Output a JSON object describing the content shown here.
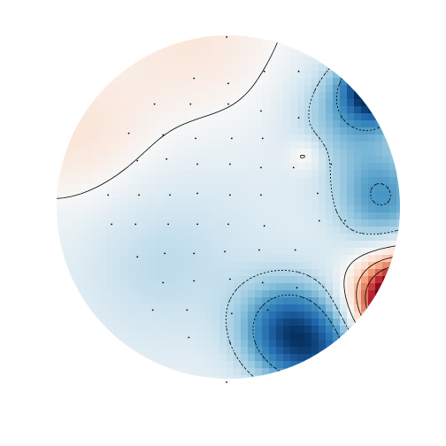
{
  "chart_data": {
    "type": "heatmap",
    "subtype": "eeg-topomap",
    "colormap": "RdBu_r",
    "contours": [
      {
        "level": 0.0,
        "style": "solid"
      },
      {
        "level": -1.0,
        "style": "dashed"
      },
      {
        "level": -2.0,
        "style": "dashed"
      },
      {
        "level": 1.0,
        "style": "solid"
      },
      {
        "level": 2.0,
        "style": "solid"
      }
    ],
    "sensors": [
      {
        "x": -0.01,
        "y": 0.99
      },
      {
        "x": 0.21,
        "y": 0.79
      },
      {
        "x": -0.2,
        "y": 0.75
      },
      {
        "x": 0.0,
        "y": 0.72
      },
      {
        "x": 0.41,
        "y": 0.79
      },
      {
        "x": -0.43,
        "y": 0.6
      },
      {
        "x": -0.22,
        "y": 0.6
      },
      {
        "x": 0.0,
        "y": 0.6
      },
      {
        "x": 0.19,
        "y": 0.56
      },
      {
        "x": 0.41,
        "y": 0.52
      },
      {
        "x": -0.58,
        "y": 0.43
      },
      {
        "x": -0.38,
        "y": 0.42
      },
      {
        "x": -0.19,
        "y": 0.4
      },
      {
        "x": 0.02,
        "y": 0.4
      },
      {
        "x": 0.2,
        "y": 0.4
      },
      {
        "x": -0.53,
        "y": 0.27
      },
      {
        "x": -0.36,
        "y": 0.28
      },
      {
        "x": -0.18,
        "y": 0.25
      },
      {
        "x": 0.01,
        "y": 0.25
      },
      {
        "x": 0.19,
        "y": 0.23
      },
      {
        "x": 0.38,
        "y": 0.23
      },
      {
        "x": 0.6,
        "y": 0.25
      },
      {
        "x": -0.7,
        "y": 0.07
      },
      {
        "x": -0.52,
        "y": 0.07
      },
      {
        "x": -0.34,
        "y": 0.07
      },
      {
        "x": -0.18,
        "y": 0.08
      },
      {
        "x": 0.01,
        "y": 0.07
      },
      {
        "x": 0.19,
        "y": 0.07
      },
      {
        "x": 0.52,
        "y": 0.08
      },
      {
        "x": -0.68,
        "y": -0.1
      },
      {
        "x": -0.54,
        "y": -0.1
      },
      {
        "x": -0.35,
        "y": -0.1
      },
      {
        "x": -0.18,
        "y": -0.1
      },
      {
        "x": 0.0,
        "y": -0.1
      },
      {
        "x": 0.21,
        "y": -0.11
      },
      {
        "x": 0.53,
        "y": -0.08
      },
      {
        "x": 0.68,
        "y": -0.08
      },
      {
        "x": -0.53,
        "y": -0.29
      },
      {
        "x": -0.37,
        "y": -0.27
      },
      {
        "x": -0.2,
        "y": -0.27
      },
      {
        "x": -0.02,
        "y": -0.26
      },
      {
        "x": 0.18,
        "y": -0.25
      },
      {
        "x": 0.39,
        "y": -0.25
      },
      {
        "x": -0.38,
        "y": -0.44
      },
      {
        "x": -0.2,
        "y": -0.43
      },
      {
        "x": 0.01,
        "y": -0.42
      },
      {
        "x": 0.2,
        "y": -0.44
      },
      {
        "x": 0.4,
        "y": -0.47
      },
      {
        "x": -0.44,
        "y": -0.6
      },
      {
        "x": -0.24,
        "y": -0.6
      },
      {
        "x": 0.02,
        "y": -0.62
      },
      {
        "x": 0.23,
        "y": -0.6
      },
      {
        "x": -0.23,
        "y": -0.76
      },
      {
        "x": 0.01,
        "y": -0.79
      },
      {
        "x": -0.01,
        "y": -1.02
      }
    ],
    "field_sources": [
      {
        "x": 0.87,
        "y": 0.7,
        "amp": -3.6,
        "sigma": 0.13
      },
      {
        "x": 0.7,
        "y": 0.55,
        "amp": -1.4,
        "sigma": 0.22
      },
      {
        "x": 0.9,
        "y": 0.05,
        "amp": -1.8,
        "sigma": 0.2
      },
      {
        "x": 1.0,
        "y": -0.55,
        "amp": 5.2,
        "sigma": 0.17
      },
      {
        "x": 0.35,
        "y": -0.72,
        "amp": -2.6,
        "sigma": 0.2
      },
      {
        "x": 0.6,
        "y": -0.9,
        "amp": -1.6,
        "sigma": 0.2
      },
      {
        "x": -0.2,
        "y": 0.98,
        "amp": 0.55,
        "sigma": 0.35
      },
      {
        "x": -0.85,
        "y": 0.4,
        "amp": 0.6,
        "sigma": 0.3
      },
      {
        "x": 0.45,
        "y": 0.3,
        "amp": 0.7,
        "sigma": 0.07
      },
      {
        "x": -0.45,
        "y": -0.35,
        "amp": -0.55,
        "sigma": 0.35
      },
      {
        "x": 0.0,
        "y": -0.2,
        "amp": -0.3,
        "sigma": 0.5
      }
    ],
    "field_baseline": -0.15,
    "color_range": [
      -3.5,
      3.5
    ],
    "xlim": [
      -1,
      1
    ],
    "ylim": [
      -1,
      1
    ],
    "title": "",
    "xlabel": "",
    "ylabel": ""
  }
}
